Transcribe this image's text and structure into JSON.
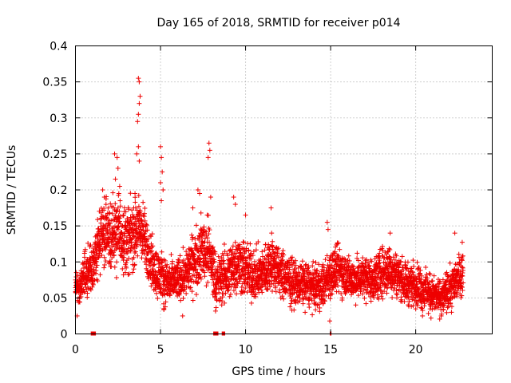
{
  "chart_data": {
    "type": "scatter",
    "title": "Day 165 of 2018, SRMTID for receiver p014",
    "xlabel": "GPS time / hours",
    "ylabel": "SRMTID / TECUs",
    "xlim": [
      0,
      24.5
    ],
    "ylim": [
      0,
      0.4
    ],
    "xticks": [
      0,
      5,
      10,
      15,
      20
    ],
    "xtick_labels": [
      "0",
      "5",
      "10",
      "15",
      "20"
    ],
    "yticks": [
      0,
      0.05,
      0.1,
      0.15,
      0.2,
      0.25,
      0.3,
      0.35,
      0.4
    ],
    "ytick_labels": [
      "0",
      "0.05",
      "0.1",
      "0.15",
      "0.2",
      "0.25",
      "0.3",
      "0.35",
      "0.4"
    ],
    "grid": true,
    "marker": "plus",
    "color": "#ee0000",
    "series": [
      {
        "name": "SRMTID",
        "envelope_hours": [
          0,
          0.3,
          0.5,
          1.0,
          1.3,
          1.6,
          2.0,
          2.5,
          3.0,
          3.5,
          3.8,
          4.2,
          4.6,
          5.0,
          5.5,
          6.0,
          6.5,
          7.0,
          7.5,
          7.9,
          8.3,
          9.0,
          9.5,
          10.0,
          10.5,
          11.0,
          11.5,
          12.0,
          12.5,
          13.0,
          13.5,
          14.0,
          14.5,
          15.0,
          15.5,
          16.0,
          16.5,
          17.0,
          17.5,
          18.0,
          18.5,
          19.0,
          19.5,
          20.0,
          20.5,
          21.0,
          21.5,
          22.0,
          22.5,
          22.8
        ],
        "envelope_mean": [
          0.06,
          0.065,
          0.08,
          0.09,
          0.12,
          0.14,
          0.135,
          0.145,
          0.13,
          0.14,
          0.15,
          0.12,
          0.09,
          0.08,
          0.07,
          0.075,
          0.085,
          0.1,
          0.12,
          0.11,
          0.07,
          0.085,
          0.1,
          0.09,
          0.08,
          0.085,
          0.1,
          0.085,
          0.075,
          0.07,
          0.07,
          0.065,
          0.065,
          0.085,
          0.09,
          0.08,
          0.075,
          0.08,
          0.075,
          0.085,
          0.09,
          0.08,
          0.07,
          0.07,
          0.06,
          0.055,
          0.05,
          0.06,
          0.08,
          0.09
        ],
        "envelope_spread": [
          0.02,
          0.02,
          0.03,
          0.03,
          0.035,
          0.04,
          0.04,
          0.045,
          0.04,
          0.04,
          0.04,
          0.035,
          0.03,
          0.03,
          0.025,
          0.025,
          0.03,
          0.035,
          0.04,
          0.04,
          0.03,
          0.035,
          0.035,
          0.035,
          0.03,
          0.03,
          0.035,
          0.03,
          0.03,
          0.025,
          0.025,
          0.025,
          0.025,
          0.03,
          0.03,
          0.025,
          0.025,
          0.025,
          0.025,
          0.03,
          0.03,
          0.025,
          0.025,
          0.025,
          0.025,
          0.02,
          0.02,
          0.025,
          0.025,
          0.03
        ],
        "peaks": [
          {
            "x": 3.7,
            "y": 0.355
          },
          {
            "x": 3.75,
            "y": 0.35
          },
          {
            "x": 3.8,
            "y": 0.33
          },
          {
            "x": 3.75,
            "y": 0.32
          },
          {
            "x": 3.7,
            "y": 0.305
          },
          {
            "x": 3.65,
            "y": 0.295
          },
          {
            "x": 3.7,
            "y": 0.26
          },
          {
            "x": 3.6,
            "y": 0.25
          },
          {
            "x": 3.75,
            "y": 0.24
          },
          {
            "x": 2.3,
            "y": 0.25
          },
          {
            "x": 2.45,
            "y": 0.245
          },
          {
            "x": 2.5,
            "y": 0.23
          },
          {
            "x": 2.35,
            "y": 0.215
          },
          {
            "x": 2.6,
            "y": 0.205
          },
          {
            "x": 2.55,
            "y": 0.195
          },
          {
            "x": 5.0,
            "y": 0.26
          },
          {
            "x": 5.05,
            "y": 0.245
          },
          {
            "x": 5.1,
            "y": 0.225
          },
          {
            "x": 5.0,
            "y": 0.21
          },
          {
            "x": 5.15,
            "y": 0.2
          },
          {
            "x": 5.05,
            "y": 0.185
          },
          {
            "x": 7.85,
            "y": 0.265
          },
          {
            "x": 7.9,
            "y": 0.255
          },
          {
            "x": 7.8,
            "y": 0.245
          },
          {
            "x": 7.2,
            "y": 0.2
          },
          {
            "x": 7.3,
            "y": 0.195
          },
          {
            "x": 7.95,
            "y": 0.19
          },
          {
            "x": 1.6,
            "y": 0.2
          },
          {
            "x": 1.7,
            "y": 0.19
          },
          {
            "x": 3.5,
            "y": 0.195
          },
          {
            "x": 9.3,
            "y": 0.19
          },
          {
            "x": 9.4,
            "y": 0.18
          },
          {
            "x": 11.5,
            "y": 0.175
          },
          {
            "x": 14.8,
            "y": 0.155
          },
          {
            "x": 14.85,
            "y": 0.145
          },
          {
            "x": 22.3,
            "y": 0.14
          },
          {
            "x": 6.9,
            "y": 0.175
          },
          {
            "x": 10.0,
            "y": 0.165
          },
          {
            "x": 18.5,
            "y": 0.14
          }
        ],
        "lows": [
          {
            "x": 0.1,
            "y": 0.025
          },
          {
            "x": 6.3,
            "y": 0.025
          },
          {
            "x": 14.95,
            "y": 0.018
          },
          {
            "x": 20.4,
            "y": 0.025
          },
          {
            "x": 20.9,
            "y": 0.022
          },
          {
            "x": 5.2,
            "y": 0.035
          },
          {
            "x": 13.5,
            "y": 0.03
          },
          {
            "x": 21.5,
            "y": 0.025
          }
        ]
      }
    ],
    "data_gaps_hours": [
      [
        0.9,
        1.2
      ],
      [
        8.1,
        8.4
      ],
      [
        8.6,
        8.8
      ],
      [
        14.95,
        15.05
      ]
    ]
  }
}
